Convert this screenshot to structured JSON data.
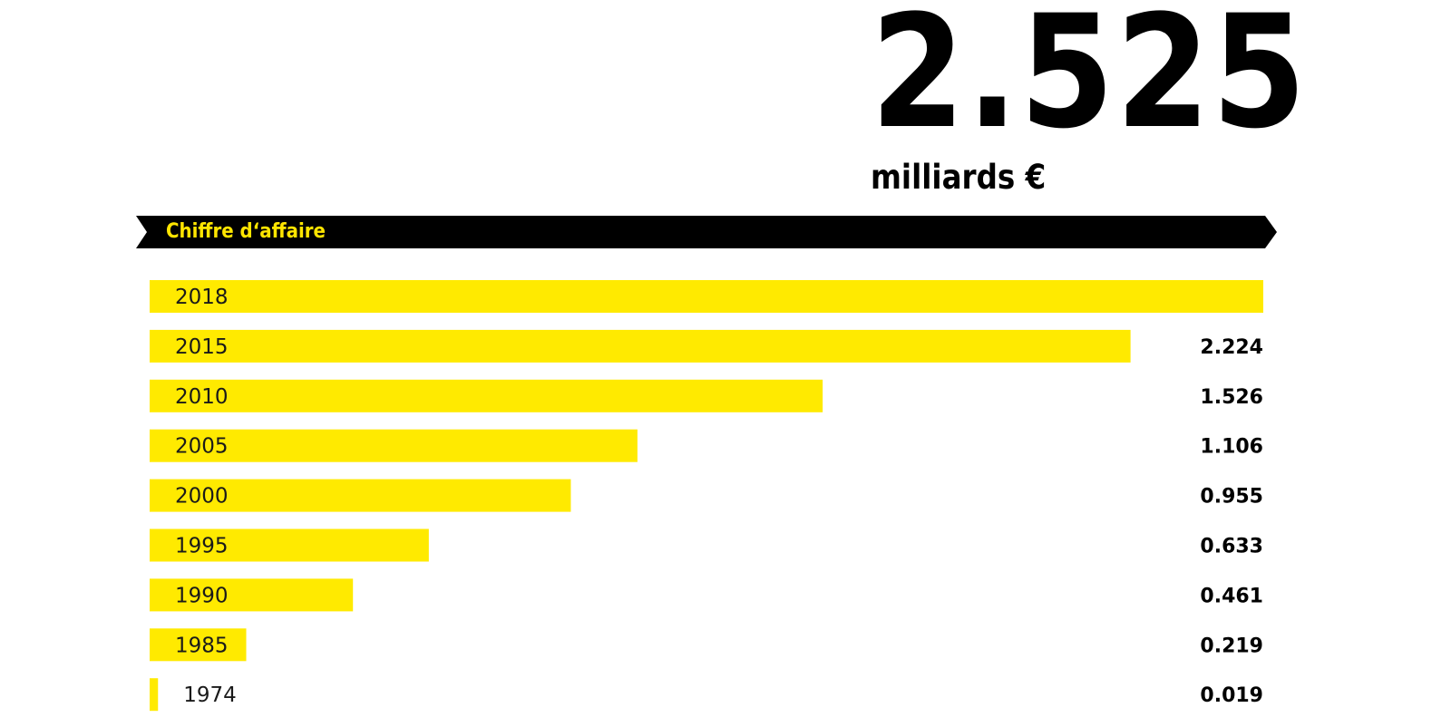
{
  "headline": {
    "value": "2.525",
    "unit": "milliards €"
  },
  "colors": {
    "bar": "#FFEA00",
    "banner_bg": "#000000",
    "banner_text": "#FFE500",
    "text": "#000000"
  },
  "chart_data": {
    "type": "bar",
    "orientation": "horizontal",
    "title": "Chiffre d‘affaire",
    "unit": "milliards €",
    "categories": [
      "2018",
      "2015",
      "2010",
      "2005",
      "2000",
      "1995",
      "1990",
      "1985",
      "1974"
    ],
    "values": [
      2.525,
      2.224,
      1.526,
      1.106,
      0.955,
      0.633,
      0.461,
      0.219,
      0.019
    ],
    "value_labels": [
      "",
      "2.224",
      "1.526",
      "1.106",
      "0.955",
      "0.633",
      "0.461",
      "0.219",
      "0.019"
    ],
    "xlim": [
      0,
      2.525
    ],
    "grid": false,
    "legend": "none"
  }
}
